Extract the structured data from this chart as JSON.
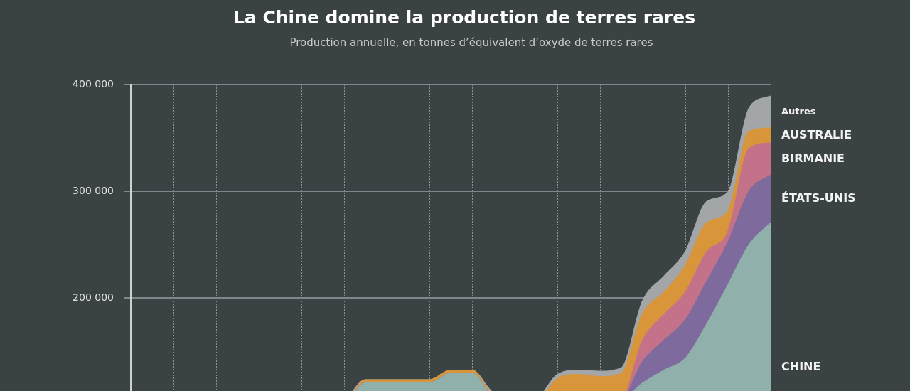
{
  "chart_data": {
    "type": "area",
    "title": "La Chine domine la production de terres rares",
    "subtitle": "Production annuelle, en tonnes d’équivalent d’oxyde de terres rares",
    "categories": [
      null,
      null,
      null,
      null,
      null,
      null,
      null,
      null,
      null,
      null,
      null,
      null,
      null,
      null,
      null,
      null,
      null,
      null,
      null,
      null,
      null,
      null,
      null,
      null,
      null,
      null,
      null,
      null,
      null,
      null,
      null
    ],
    "stacked": true,
    "series": [
      {
        "name": "CHINE",
        "color": "#8fb0ab",
        "values": [
          30000,
          48000,
          55000,
          53000,
          60000,
          70000,
          73000,
          80000,
          88000,
          92000,
          98000,
          120000,
          120000,
          120000,
          120000,
          129000,
          129000,
          105000,
          100000,
          95000,
          105000,
          105000,
          105000,
          105000,
          120000,
          132000,
          143000,
          175000,
          212000,
          250000,
          270000
        ]
      },
      {
        "name": "ÉTATS-UNIS",
        "color": "#7e6a9c",
        "values": [
          20000,
          22000,
          20000,
          10000,
          5000,
          5000,
          5000,
          5000,
          0,
          0,
          0,
          0,
          0,
          0,
          0,
          0,
          0,
          0,
          0,
          0,
          5000,
          4000,
          0,
          0,
          20000,
          28000,
          36000,
          40000,
          40000,
          50000,
          45000
        ]
      },
      {
        "name": "BIRMANIE",
        "color": "#c4728a",
        "values": [
          0,
          0,
          0,
          0,
          0,
          0,
          0,
          0,
          0,
          0,
          0,
          0,
          0,
          0,
          0,
          0,
          0,
          0,
          0,
          0,
          0,
          0,
          0,
          0,
          20000,
          24000,
          26000,
          28000,
          10000,
          40000,
          30000
        ]
      },
      {
        "name": "AUSTRALIE",
        "color": "#d9953a",
        "values": [
          0,
          0,
          0,
          0,
          0,
          0,
          0,
          0,
          0,
          0,
          0,
          3000,
          3000,
          3000,
          3000,
          3000,
          3000,
          3000,
          5000,
          8000,
          14000,
          19000,
          21000,
          24000,
          25000,
          21000,
          25000,
          27000,
          19000,
          16000,
          14000
        ]
      },
      {
        "name": "Autres",
        "color": "#a3a6a8",
        "values": [
          5000,
          5000,
          5000,
          5000,
          5000,
          5000,
          5000,
          5000,
          5000,
          5000,
          5000,
          0,
          0,
          0,
          0,
          0,
          0,
          3000,
          3000,
          3000,
          4000,
          4000,
          5000,
          5000,
          12000,
          15000,
          13000,
          20000,
          18000,
          22000,
          30000
        ]
      }
    ],
    "ylim": [
      0,
      400000
    ],
    "yticks": [
      {
        "value": 200000,
        "label": "200 000"
      },
      {
        "value": 300000,
        "label": "300 000"
      },
      {
        "value": 400000,
        "label": "400 000"
      }
    ],
    "grid": true,
    "tick_labels": "y"
  }
}
